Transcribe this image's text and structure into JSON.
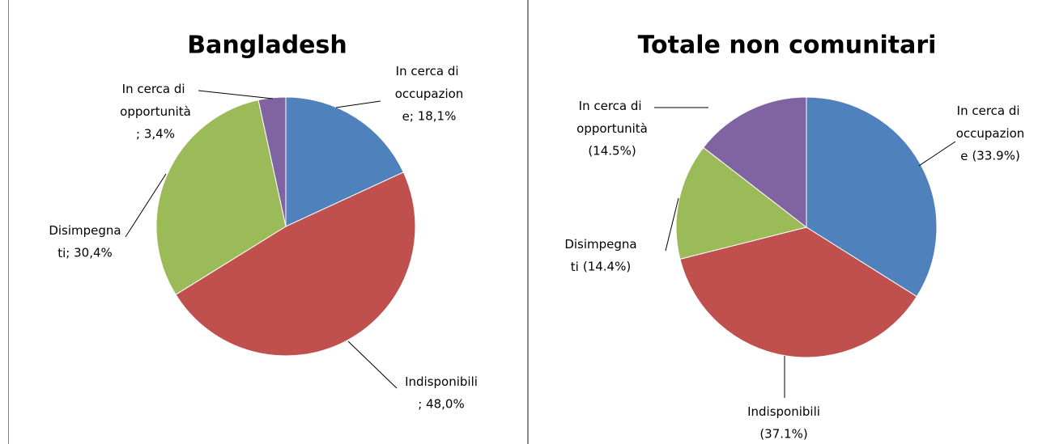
{
  "chart_data": [
    {
      "type": "pie",
      "title": "Bangladesh",
      "categories": [
        "In cerca di occupazione",
        "Indisponibili",
        "Disimpegnati",
        "In cerca di opportunità"
      ],
      "values": [
        18.1,
        48.0,
        30.4,
        3.4
      ],
      "value_labels": [
        "; 18,1%",
        "; 48,0%",
        "; 30,4%",
        "; 3,4%"
      ],
      "colors": [
        "#4f81bd",
        "#c0504d",
        "#9bbb59",
        "#8064a2"
      ]
    },
    {
      "type": "pie",
      "title": "Totale non comunitari",
      "categories": [
        "In cerca di occupazione",
        "Indisponibili",
        "Disimpegnati",
        "In cerca di opportunità"
      ],
      "values": [
        33.9,
        37.1,
        14.4,
        14.5
      ],
      "value_labels": [
        "(33.9%)",
        "(37.1%)",
        "(14.4%)",
        "(14.5%)"
      ],
      "colors": [
        "#4f81bd",
        "#c0504d",
        "#9bbb59",
        "#8064a2"
      ]
    }
  ]
}
